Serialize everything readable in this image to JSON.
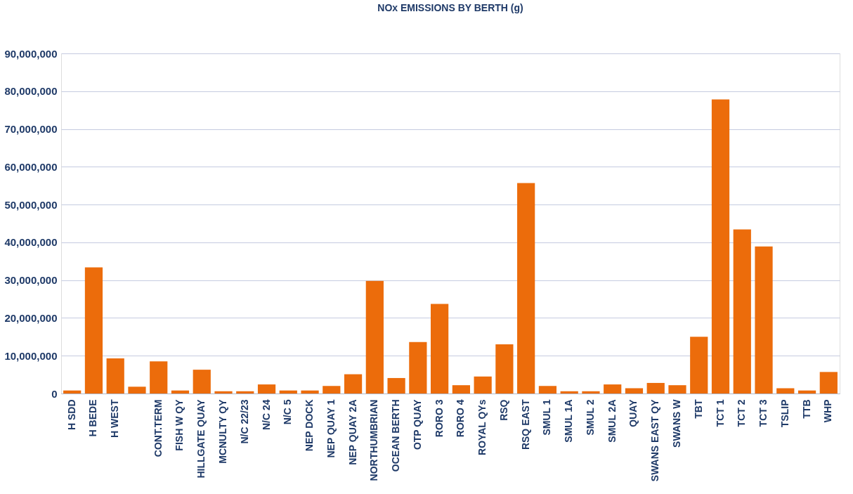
{
  "chart_data": {
    "type": "bar",
    "title": "NOx EMISSIONS BY BERTH (g)",
    "categories": [
      "H SDD",
      "H BEDE",
      "H WEST",
      null,
      "CONT.TERM",
      "FISH W QY",
      "HILLGATE QUAY",
      "MCNULTY QY",
      "N/C 22/23",
      "N/C 24",
      "N/C 5",
      "NEP DOCK",
      "NEP QUAY 1",
      "NEP QUAY 2A",
      "NORTHUMBRIAN",
      "OCEAN BERTH",
      "OTP QUAY",
      "RORO 3",
      "RORO 4",
      "ROYAL QYs",
      "RSQ",
      "RSQ EAST",
      "SMUL 1",
      "SMUL 1A",
      "SMUL 2",
      "SMUL 2A",
      "QUAY",
      "SWANS EAST QY",
      "SWANS W",
      "TBT",
      "TCT 1",
      "TCT 2",
      "TCT 3",
      "TSLIP",
      "TTB",
      "WHP"
    ],
    "values": [
      800000,
      33400000,
      9300000,
      1800000,
      8500000,
      800000,
      6300000,
      600000,
      600000,
      2400000,
      800000,
      800000,
      2000000,
      5100000,
      29800000,
      4100000,
      13600000,
      23700000,
      2200000,
      4500000,
      13000000,
      55700000,
      2000000,
      600000,
      600000,
      2400000,
      1400000,
      2800000,
      2200000,
      15000000,
      77800000,
      43400000,
      38900000,
      1400000,
      800000,
      5700000
    ],
    "color": "#ec6c0b",
    "ylim": [
      0,
      90000000
    ],
    "yticks": [
      {
        "value": 0,
        "label": "0"
      },
      {
        "value": 10000000,
        "label": "10,000,000"
      },
      {
        "value": 20000000,
        "label": "20,000,000"
      },
      {
        "value": 30000000,
        "label": "30,000,000"
      },
      {
        "value": 40000000,
        "label": "40,000,000"
      },
      {
        "value": 50000000,
        "label": "50,000,000"
      },
      {
        "value": 60000000,
        "label": "60,000,000"
      },
      {
        "value": 70000000,
        "label": "70,000,000"
      },
      {
        "value": 80000000,
        "label": "80,000,000"
      },
      {
        "value": 90000000,
        "label": "90,000,000"
      }
    ],
    "grid": "y"
  }
}
